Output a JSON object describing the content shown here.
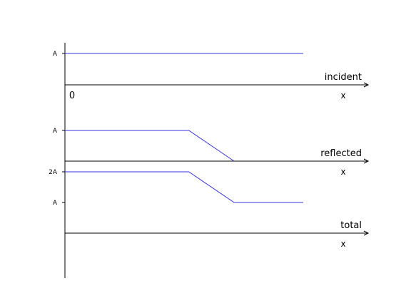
{
  "colors": {
    "axis": "#000000",
    "trace": "#3333dd",
    "background": "#ffffff"
  },
  "panels": [
    {
      "name": "incident",
      "label": "incident",
      "x_label": "x",
      "origin_label": "0",
      "y_ticks": [
        {
          "value": 1,
          "label": "A"
        }
      ],
      "profile": [
        [
          0,
          1
        ],
        [
          1,
          1
        ]
      ]
    },
    {
      "name": "reflected",
      "label": "reflected",
      "x_label": "x",
      "y_ticks": [
        {
          "value": 1,
          "label": "A"
        }
      ],
      "profile": [
        [
          0,
          1
        ],
        [
          0.52,
          1
        ],
        [
          0.71,
          0
        ]
      ]
    },
    {
      "name": "total",
      "label": "total",
      "x_label": "x",
      "y_ticks": [
        {
          "value": 2,
          "label": "2A"
        },
        {
          "value": 1,
          "label": "A"
        }
      ],
      "profile": [
        [
          0,
          2
        ],
        [
          0.52,
          2
        ],
        [
          0.71,
          1
        ],
        [
          1,
          1
        ]
      ]
    }
  ]
}
